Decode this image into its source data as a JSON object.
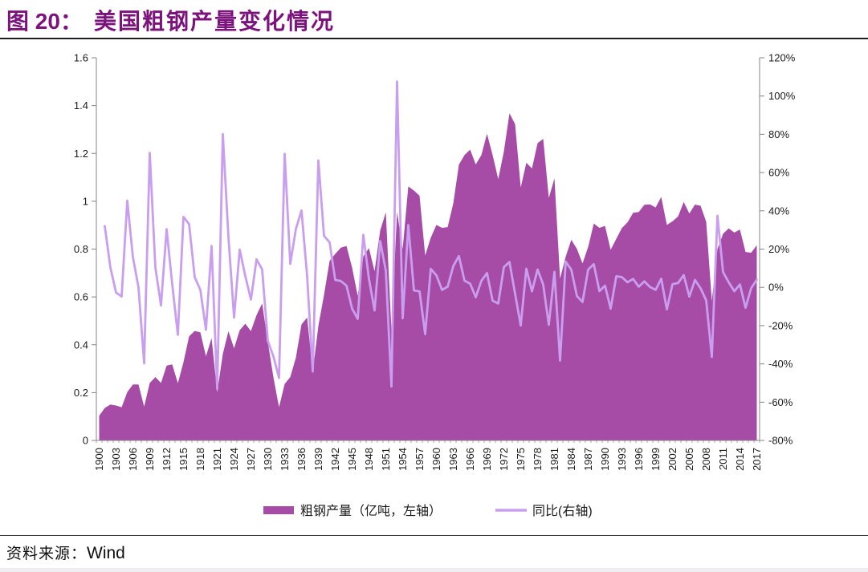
{
  "figure": {
    "label": "图 20：",
    "title": "美国粗钢产量变化情况"
  },
  "source": {
    "label": "资料来源：",
    "value": "Wind"
  },
  "colors": {
    "area": "#A64CA6",
    "line": "#C99EEF",
    "title": "#7C137C",
    "axis": "#848484",
    "tick_label": "#1a1a1a",
    "header_rule": "#1f1f1f"
  },
  "chart_data": {
    "type": "area",
    "title": "美国粗钢产量变化情况",
    "x": [
      1900,
      1901,
      1902,
      1903,
      1904,
      1905,
      1906,
      1907,
      1908,
      1909,
      1910,
      1911,
      1912,
      1913,
      1914,
      1915,
      1916,
      1917,
      1918,
      1919,
      1920,
      1921,
      1922,
      1923,
      1924,
      1925,
      1926,
      1927,
      1928,
      1929,
      1930,
      1931,
      1932,
      1933,
      1934,
      1935,
      1936,
      1937,
      1938,
      1939,
      1940,
      1941,
      1942,
      1943,
      1944,
      1945,
      1946,
      1947,
      1948,
      1949,
      1950,
      1951,
      1952,
      1953,
      1954,
      1955,
      1956,
      1957,
      1958,
      1959,
      1960,
      1961,
      1962,
      1963,
      1964,
      1965,
      1966,
      1967,
      1968,
      1969,
      1970,
      1971,
      1972,
      1973,
      1974,
      1975,
      1976,
      1977,
      1978,
      1979,
      1980,
      1981,
      1982,
      1983,
      1984,
      1985,
      1986,
      1987,
      1988,
      1989,
      1990,
      1991,
      1992,
      1993,
      1994,
      1995,
      1996,
      1997,
      1998,
      1999,
      2000,
      2001,
      2002,
      2003,
      2004,
      2005,
      2006,
      2007,
      2008,
      2009,
      2010,
      2011,
      2012,
      2013,
      2014,
      2015,
      2016,
      2017
    ],
    "series": [
      {
        "name": "粗钢产量（亿吨，左轴）",
        "type": "area",
        "axis": "left",
        "values": [
          0.103,
          0.136,
          0.15,
          0.146,
          0.139,
          0.202,
          0.234,
          0.234,
          0.141,
          0.24,
          0.265,
          0.24,
          0.313,
          0.318,
          0.239,
          0.327,
          0.435,
          0.458,
          0.452,
          0.352,
          0.428,
          0.201,
          0.362,
          0.457,
          0.385,
          0.461,
          0.488,
          0.457,
          0.524,
          0.573,
          0.413,
          0.264,
          0.139,
          0.236,
          0.265,
          0.346,
          0.485,
          0.514,
          0.288,
          0.479,
          0.608,
          0.751,
          0.78,
          0.806,
          0.813,
          0.723,
          0.604,
          0.77,
          0.804,
          0.707,
          0.878,
          0.954,
          0.46,
          0.955,
          0.801,
          1.062,
          1.045,
          1.023,
          0.773,
          0.848,
          0.901,
          0.889,
          0.892,
          0.991,
          1.153,
          1.193,
          1.216,
          1.154,
          1.193,
          1.282,
          1.193,
          1.092,
          1.208,
          1.368,
          1.322,
          1.058,
          1.161,
          1.137,
          1.243,
          1.261,
          1.014,
          1.096,
          0.677,
          0.768,
          0.839,
          0.801,
          0.74,
          0.809,
          0.907,
          0.889,
          0.897,
          0.797,
          0.843,
          0.888,
          0.912,
          0.952,
          0.955,
          0.985,
          0.987,
          0.974,
          1.018,
          0.901,
          0.916,
          0.937,
          0.997,
          0.949,
          0.986,
          0.981,
          0.914,
          0.582,
          0.8,
          0.864,
          0.887,
          0.869,
          0.882,
          0.788,
          0.785,
          0.816
        ]
      },
      {
        "name": "同比(右轴)",
        "type": "line",
        "axis": "right",
        "derived": "year_over_year_of_series_0"
      }
    ],
    "left_axis": {
      "min": 0,
      "max": 1.6,
      "tick_labels": [
        "1.6",
        "1.4",
        "1.2",
        "1",
        "0.8",
        "0.6",
        "0.4",
        "0.2",
        "0"
      ]
    },
    "right_axis": {
      "min": -0.8,
      "max": 1.2,
      "tick_labels": [
        "120%",
        "100%",
        "80%",
        "60%",
        "40%",
        "20%",
        "0%",
        "-20%",
        "-40%",
        "-60%",
        "-80%"
      ]
    },
    "x_tick_every": 3,
    "grid": false,
    "legend_position": "bottom"
  }
}
